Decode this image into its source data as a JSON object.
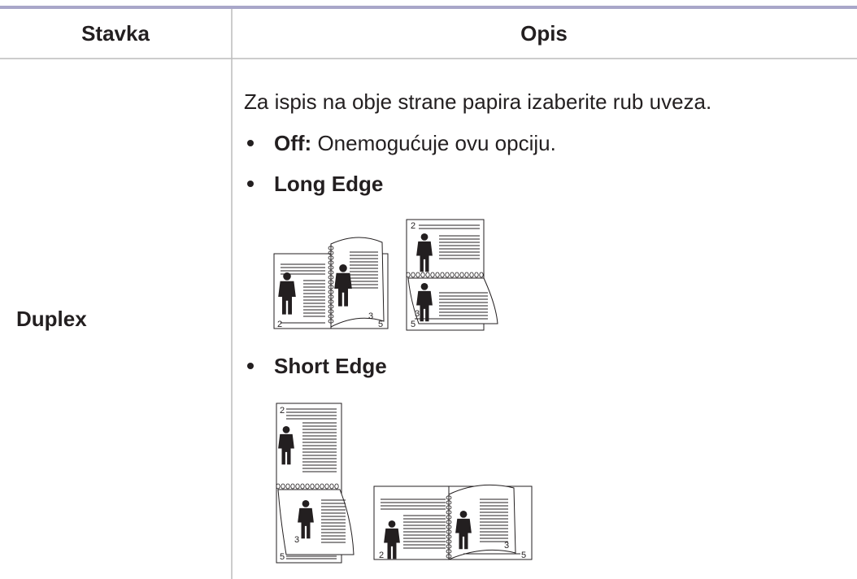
{
  "table": {
    "header": [
      "Stavka",
      "Opis"
    ],
    "rows": [
      {
        "item": "Duplex",
        "description": {
          "intro": "Za ispis na obje strane papira izaberite rub uveza.",
          "options": [
            {
              "label": "Off:",
              "text": "Onemogućuje ovu opciju."
            },
            {
              "label": "Long Edge"
            },
            {
              "label": "Short Edge"
            }
          ]
        }
      }
    ]
  },
  "illustrations": {
    "long_edge": {
      "book": [
        "2",
        "3",
        "5"
      ],
      "flip": [
        "2",
        "3",
        "5"
      ]
    },
    "short_edge": {
      "flip": [
        "2",
        "3",
        "5"
      ],
      "book": [
        "2",
        "3",
        "5"
      ]
    }
  }
}
